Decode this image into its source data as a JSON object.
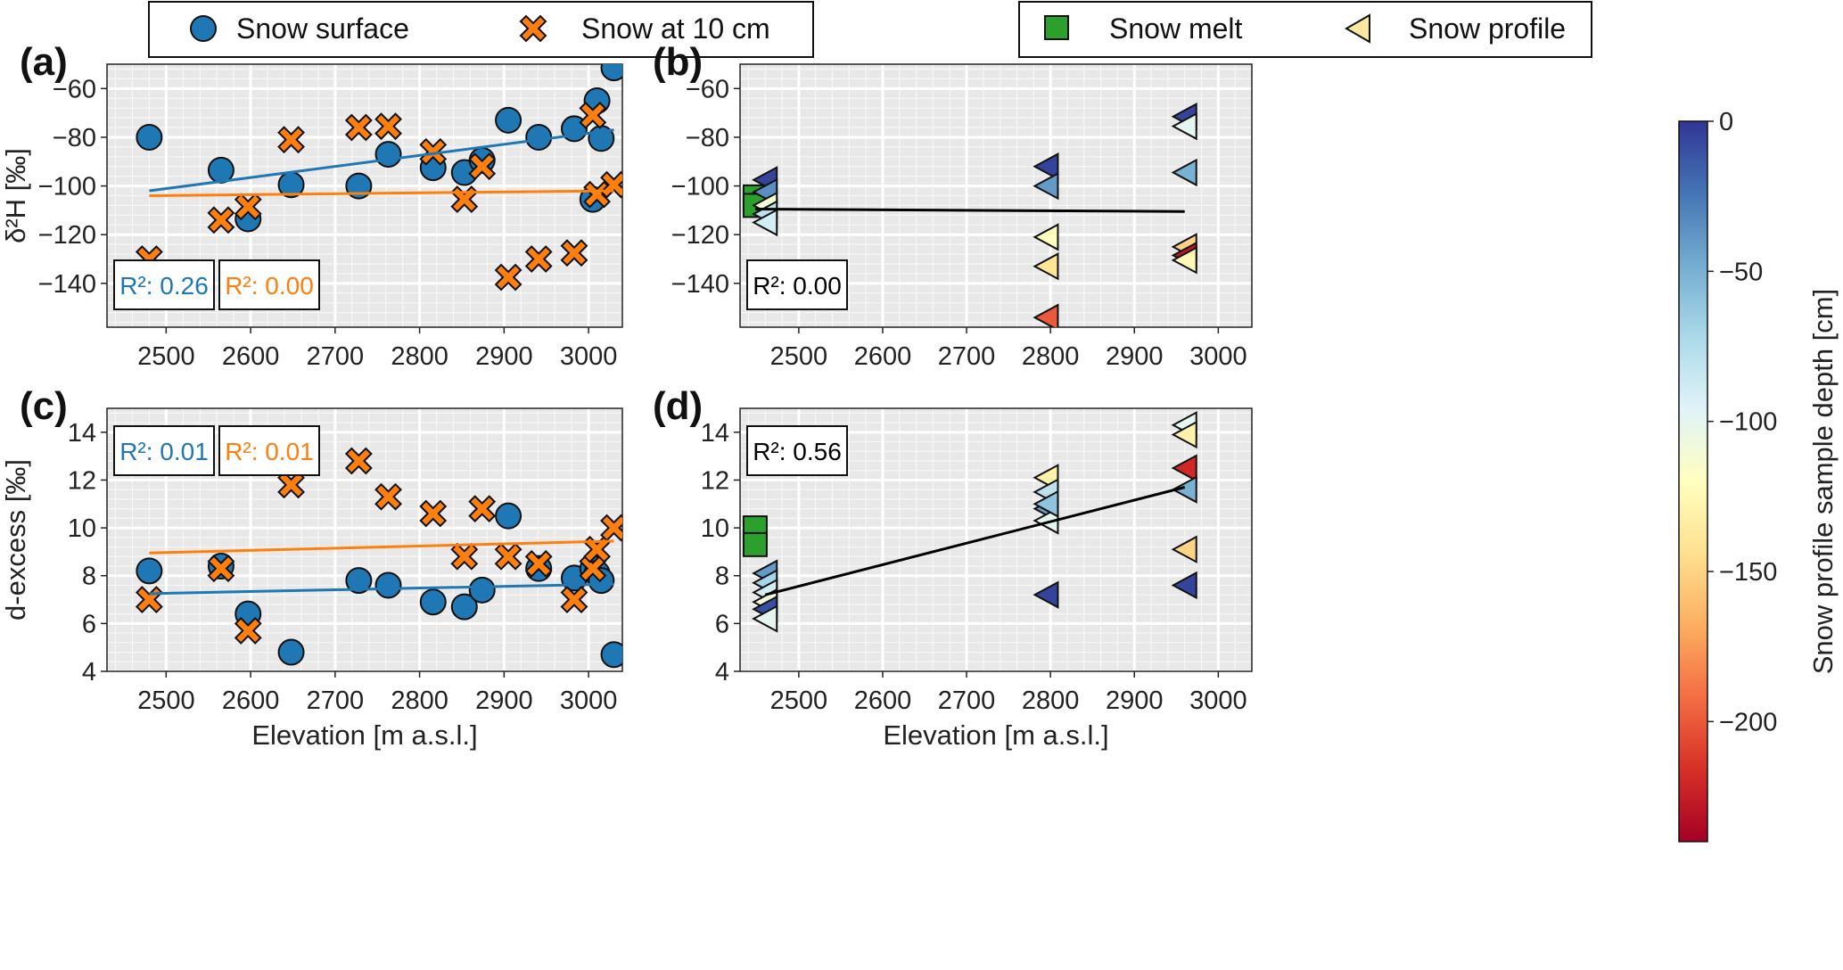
{
  "legend_left": {
    "items": [
      {
        "label": "Snow surface",
        "marker": "circle",
        "color": "#1f77b4"
      },
      {
        "label": "Snow at 10 cm",
        "marker": "x",
        "color": "#ff7f0e"
      }
    ]
  },
  "legend_right": {
    "items": [
      {
        "label": "Snow melt",
        "marker": "square",
        "color": "#2ca02c"
      },
      {
        "label": "Snow profile",
        "marker": "triangle-left",
        "color": "#fbe9a0"
      }
    ]
  },
  "colorbar": {
    "label": "Snow profile sample depth [cm]",
    "range": [
      -240,
      0
    ],
    "ticks": [
      0,
      -50,
      -100,
      -150,
      -200
    ],
    "tick_labels": [
      "0",
      "−50",
      "−100",
      "−150",
      "−200"
    ],
    "colormap": "RdYlBu"
  },
  "colors": {
    "surface": "#1f77b4",
    "ten_cm": "#ff7f0e",
    "melt": "#2ca02c",
    "fit": "#000000",
    "panel_bg": "#e8e8e8"
  },
  "chart_data": [
    {
      "panel": "(a)",
      "type": "scatter",
      "xlabel": "",
      "ylabel": "δ²H [‰]",
      "xlim": [
        2430,
        3040
      ],
      "ylim": [
        -158,
        -50
      ],
      "xticks": [
        2500,
        2600,
        2700,
        2800,
        2900,
        3000
      ],
      "yticks": [
        -60,
        -80,
        -100,
        -120,
        -140
      ],
      "ytick_labels": [
        "−60",
        "−80",
        "−100",
        "−120",
        "−140"
      ],
      "series": [
        {
          "name": "Snow surface",
          "marker": "circle",
          "color": "#1f77b4",
          "x": [
            2480,
            2565,
            2597,
            2648,
            2728,
            2763,
            2816,
            2853,
            2874,
            2905,
            2941,
            2983,
            3005,
            3010,
            3015,
            3030
          ],
          "y": [
            -80,
            -93.5,
            -113.5,
            -99.5,
            -100,
            -87,
            -92.5,
            -94.5,
            -89.5,
            -73,
            -80,
            -76.5,
            -105.5,
            -65,
            -80.5,
            -51.5
          ]
        },
        {
          "name": "Snow at 10 cm",
          "marker": "x",
          "color": "#ff7f0e",
          "x": [
            2480,
            2565,
            2597,
            2648,
            2728,
            2763,
            2816,
            2853,
            2874,
            2905,
            2941,
            2983,
            3005,
            3010,
            3030
          ],
          "y": [
            -130,
            -114,
            -108.5,
            -81,
            -76,
            -75.5,
            -86,
            -105.5,
            -92,
            -137.5,
            -130,
            -127.5,
            -71,
            -103.5,
            -99.5
          ]
        }
      ],
      "fits": [
        {
          "color": "#1f77b4",
          "x": [
            2480,
            3030
          ],
          "y": [
            -102,
            -77
          ]
        },
        {
          "color": "#ff7f0e",
          "x": [
            2480,
            3030
          ],
          "y": [
            -104,
            -102
          ]
        }
      ],
      "r2_boxes": [
        {
          "text": "R²: 0.26",
          "color": "#1f77b4"
        },
        {
          "text": "R²: 0.00",
          "color": "#ff7f0e"
        }
      ]
    },
    {
      "panel": "(b)",
      "type": "scatter",
      "xlabel": "",
      "ylabel": "",
      "xlim": [
        2430,
        3040
      ],
      "ylim": [
        -158,
        -50
      ],
      "xticks": [
        2500,
        2600,
        2700,
        2800,
        2900,
        3000
      ],
      "yticks": [
        -60,
        -80,
        -100,
        -120,
        -140
      ],
      "ytick_labels": [
        "−60",
        "−80",
        "−100",
        "−120",
        "−140"
      ],
      "series": [
        {
          "name": "Snow melt",
          "marker": "square",
          "color": "#2ca02c",
          "x": [
            2448,
            2448
          ],
          "y": [
            -104.5,
            -108
          ]
        },
        {
          "name": "Snow profile",
          "marker": "triangle-left",
          "color_by": "depth",
          "x": [
            2460,
            2460,
            2460,
            2460,
            2460,
            2795,
            2795,
            2795,
            2795,
            2795,
            2960,
            2960,
            2960,
            2960,
            2960,
            2960
          ],
          "y": [
            -97.5,
            -102.5,
            -108,
            -111.5,
            -115,
            -92,
            -100,
            -121,
            -133,
            -154,
            -71.5,
            -75.5,
            -94.5,
            -125,
            -128.5,
            -130.5
          ],
          "depth": [
            -5,
            -35,
            -110,
            -80,
            -90,
            -5,
            -40,
            -120,
            -140,
            -200,
            -5,
            -100,
            -50,
            -150,
            -230,
            -125
          ]
        }
      ],
      "fits": [
        {
          "color": "#000000",
          "x": [
            2448,
            2960
          ],
          "y": [
            -109.5,
            -110.5
          ]
        }
      ],
      "r2_boxes": [
        {
          "text": "R²: 0.00",
          "color": "#000000"
        }
      ]
    },
    {
      "panel": "(c)",
      "type": "scatter",
      "xlabel": "Elevation [m a.s.l.]",
      "ylabel": "d-excess [‰]",
      "xlim": [
        2430,
        3040
      ],
      "ylim": [
        4,
        15
      ],
      "xticks": [
        2500,
        2600,
        2700,
        2800,
        2900,
        3000
      ],
      "yticks": [
        4,
        6,
        8,
        10,
        12,
        14
      ],
      "ytick_labels": [
        "4",
        "6",
        "8",
        "10",
        "12",
        "14"
      ],
      "series": [
        {
          "name": "Snow surface",
          "marker": "circle",
          "color": "#1f77b4",
          "x": [
            2480,
            2565,
            2597,
            2648,
            2728,
            2763,
            2816,
            2853,
            2874,
            2905,
            2941,
            2983,
            3005,
            3010,
            3015,
            3030
          ],
          "y": [
            8.2,
            8.4,
            6.4,
            4.8,
            7.8,
            7.6,
            6.9,
            6.7,
            7.4,
            10.5,
            8.3,
            7.9,
            8.3,
            8.1,
            7.8,
            4.7
          ]
        },
        {
          "name": "Snow at 10 cm",
          "marker": "x",
          "color": "#ff7f0e",
          "x": [
            2480,
            2565,
            2597,
            2648,
            2728,
            2763,
            2816,
            2853,
            2874,
            2905,
            2941,
            2983,
            3005,
            3010,
            3030
          ],
          "y": [
            7.0,
            8.3,
            5.7,
            11.8,
            12.8,
            11.3,
            10.6,
            8.8,
            10.8,
            8.8,
            8.5,
            7.0,
            8.3,
            9.1,
            10.0
          ]
        }
      ],
      "fits": [
        {
          "color": "#1f77b4",
          "x": [
            2480,
            3030
          ],
          "y": [
            7.25,
            7.65
          ]
        },
        {
          "color": "#ff7f0e",
          "x": [
            2480,
            3030
          ],
          "y": [
            8.95,
            9.45
          ]
        }
      ],
      "r2_boxes": [
        {
          "text": "R²: 0.01",
          "color": "#1f77b4"
        },
        {
          "text": "R²: 0.01",
          "color": "#ff7f0e"
        }
      ]
    },
    {
      "panel": "(d)",
      "type": "scatter",
      "xlabel": "Elevation [m a.s.l.]",
      "ylabel": "",
      "xlim": [
        2430,
        3040
      ],
      "ylim": [
        4,
        15
      ],
      "xticks": [
        2500,
        2600,
        2700,
        2800,
        2900,
        3000
      ],
      "yticks": [
        4,
        6,
        8,
        10,
        12,
        14
      ],
      "ytick_labels": [
        "4",
        "6",
        "8",
        "10",
        "12",
        "14"
      ],
      "series": [
        {
          "name": "Snow melt",
          "marker": "square",
          "color": "#2ca02c",
          "x": [
            2448,
            2448
          ],
          "y": [
            10.0,
            9.3
          ]
        },
        {
          "name": "Snow profile",
          "marker": "triangle-left",
          "color_by": "depth",
          "x": [
            2460,
            2460,
            2460,
            2460,
            2460,
            2460,
            2795,
            2795,
            2795,
            2795,
            2795,
            2795,
            2960,
            2960,
            2960,
            2960,
            2960,
            2960
          ],
          "y": [
            8.1,
            7.7,
            7.3,
            6.9,
            6.6,
            6.2,
            12.1,
            11.5,
            10.8,
            10.3,
            7.2,
            11.0,
            14.3,
            13.9,
            12.5,
            11.6,
            9.1,
            7.6
          ],
          "depth": [
            -40,
            -70,
            -90,
            -110,
            -10,
            -100,
            -130,
            -80,
            -40,
            -100,
            -5,
            -60,
            -100,
            -130,
            -220,
            -50,
            -150,
            -5
          ]
        }
      ],
      "fits": [
        {
          "color": "#000000",
          "x": [
            2460,
            2960
          ],
          "y": [
            7.2,
            11.7
          ]
        }
      ],
      "r2_boxes": [
        {
          "text": "R²: 0.56",
          "color": "#000000"
        }
      ]
    }
  ]
}
